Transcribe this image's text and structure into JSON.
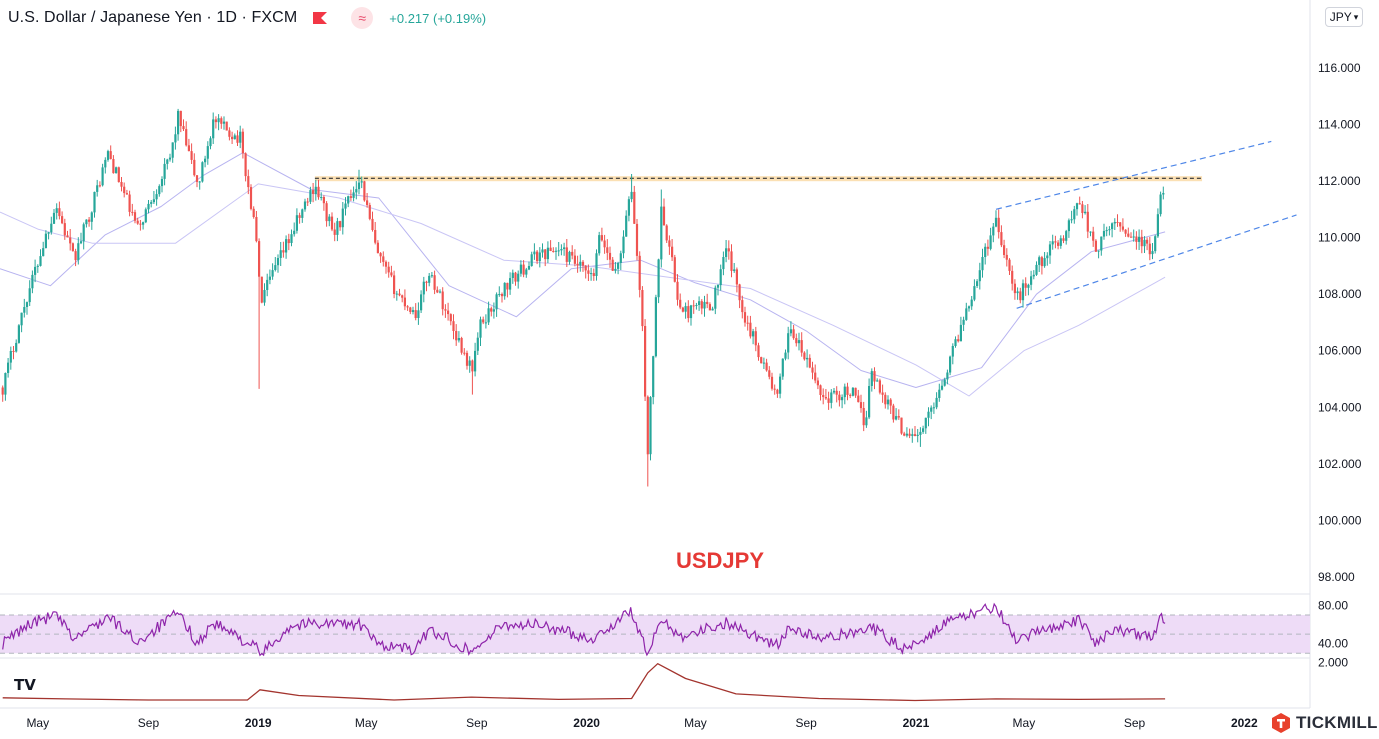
{
  "header": {
    "title": "U.S. Dollar / Japanese Yen · 1D · FXCM",
    "change": "+0.217 (+0.19%)",
    "flag_icon": "flag-icon",
    "indicator_icon": "wave-icon"
  },
  "currency_selector": {
    "label": "JPY",
    "icon": "chevron-down-icon"
  },
  "brand": {
    "name": "TICKMILL",
    "logo_icon": "tickmill-logo-icon"
  },
  "tv_logo": "TV",
  "colors": {
    "up": "#26a69a",
    "down": "#ef5350",
    "ma_fast": "#b7b3f0",
    "ma_slow": "#c9c5f5",
    "resistance": "#131722",
    "resistance_band": "#fbe0b4",
    "channel": "#4f87e8",
    "watermark": "#e53935",
    "rsi_line": "#8e24aa",
    "rsi_band": "#eedcf7",
    "volatility_line": "#a3342e",
    "axis_text": "#131722"
  },
  "chart_data": [
    {
      "type": "candlestick",
      "watermark": "USDJPY",
      "y_ticks": [
        "98.000",
        "100.000",
        "102.000",
        "104.000",
        "106.000",
        "108.000",
        "110.000",
        "112.000",
        "114.000",
        "116.000"
      ],
      "ylim": [
        97.4,
        118.4
      ],
      "x_ticks": [
        "May",
        "Sep",
        "2019",
        "May",
        "Sep",
        "2020",
        "May",
        "Sep",
        "2021",
        "May",
        "Sep",
        "2022"
      ],
      "x_tick_dates": [
        "2018-05-01",
        "2018-09-01",
        "2019-01-01",
        "2019-05-01",
        "2019-09-01",
        "2020-01-01",
        "2020-05-01",
        "2020-09-01",
        "2021-01-01",
        "2021-05-01",
        "2021-09-01",
        "2022-01-01"
      ],
      "xlim": [
        "2018-03-20",
        "2022-03-15"
      ],
      "price_path": [
        [
          "2018-03-23",
          104.7
        ],
        [
          "2018-04-15",
          107.5
        ],
        [
          "2018-05-21",
          111.2
        ],
        [
          "2018-06-10",
          109.2
        ],
        [
          "2018-06-28",
          110.9
        ],
        [
          "2018-07-18",
          113.0
        ],
        [
          "2018-08-20",
          110.3
        ],
        [
          "2018-09-25",
          112.8
        ],
        [
          "2018-10-04",
          114.3
        ],
        [
          "2018-10-26",
          111.8
        ],
        [
          "2018-11-12",
          114.1
        ],
        [
          "2018-12-12",
          113.5
        ],
        [
          "2018-12-31",
          109.8
        ],
        [
          "2019-01-03",
          107.7
        ],
        [
          "2019-01-10",
          108.2
        ],
        [
          "2019-02-05",
          110.0
        ],
        [
          "2019-03-05",
          111.9
        ],
        [
          "2019-03-26",
          110.1
        ],
        [
          "2019-04-24",
          112.2
        ],
        [
          "2019-05-13",
          109.4
        ],
        [
          "2019-06-05",
          108.0
        ],
        [
          "2019-06-25",
          107.3
        ],
        [
          "2019-07-10",
          108.8
        ],
        [
          "2019-08-26",
          105.3
        ],
        [
          "2019-09-05",
          106.9
        ],
        [
          "2019-10-01",
          108.2
        ],
        [
          "2019-11-07",
          109.4
        ],
        [
          "2019-12-02",
          109.6
        ],
        [
          "2020-01-08",
          108.5
        ],
        [
          "2020-01-16",
          110.1
        ],
        [
          "2020-02-03",
          108.7
        ],
        [
          "2020-02-20",
          111.7
        ],
        [
          "2020-03-02",
          107.4
        ],
        [
          "2020-03-09",
          102.4
        ],
        [
          "2020-03-24",
          111.2
        ],
        [
          "2020-04-15",
          107.3
        ],
        [
          "2020-05-20",
          107.7
        ],
        [
          "2020-06-05",
          109.6
        ],
        [
          "2020-06-25",
          107.2
        ],
        [
          "2020-07-31",
          104.3
        ],
        [
          "2020-08-13",
          106.9
        ],
        [
          "2020-09-21",
          104.3
        ],
        [
          "2020-10-21",
          104.6
        ],
        [
          "2020-11-06",
          103.4
        ],
        [
          "2020-11-11",
          105.3
        ],
        [
          "2020-12-17",
          103.2
        ],
        [
          "2021-01-06",
          103.0
        ],
        [
          "2021-02-05",
          105.4
        ],
        [
          "2021-03-31",
          110.7
        ],
        [
          "2021-04-23",
          107.8
        ],
        [
          "2021-05-20",
          109.2
        ],
        [
          "2021-06-15",
          110.1
        ],
        [
          "2021-07-02",
          111.4
        ],
        [
          "2021-07-19",
          109.5
        ],
        [
          "2021-08-10",
          110.6
        ],
        [
          "2021-09-09",
          109.8
        ],
        [
          "2021-09-21",
          109.4
        ],
        [
          "2021-09-30",
          111.3
        ],
        [
          "2021-10-05",
          111.5
        ]
      ],
      "wicks": [
        {
          "date": "2018-10-04",
          "high": 114.55
        },
        {
          "date": "2019-01-03",
          "low": 104.65
        },
        {
          "date": "2019-04-24",
          "high": 112.4
        },
        {
          "date": "2019-08-26",
          "low": 104.45
        },
        {
          "date": "2020-02-20",
          "high": 112.25
        },
        {
          "date": "2020-03-09",
          "low": 101.2
        },
        {
          "date": "2020-03-24",
          "high": 111.7
        },
        {
          "date": "2021-01-06",
          "low": 102.6
        },
        {
          "date": "2021-10-05",
          "high": 112.05
        }
      ],
      "ma_fast": [
        [
          "2018-03-20",
          108.9
        ],
        [
          "2018-05-15",
          108.3
        ],
        [
          "2018-07-15",
          110.1
        ],
        [
          "2018-09-15",
          111.1
        ],
        [
          "2018-11-01",
          112.2
        ],
        [
          "2018-12-15",
          113.0
        ],
        [
          "2019-03-01",
          111.7
        ],
        [
          "2019-05-15",
          111.4
        ],
        [
          "2019-08-01",
          108.3
        ],
        [
          "2019-10-15",
          107.2
        ],
        [
          "2019-12-15",
          108.9
        ],
        [
          "2020-03-01",
          109.2
        ],
        [
          "2020-05-01",
          108.4
        ],
        [
          "2020-07-01",
          107.8
        ],
        [
          "2020-09-01",
          106.7
        ],
        [
          "2020-11-01",
          105.3
        ],
        [
          "2021-01-01",
          104.7
        ],
        [
          "2021-03-15",
          105.4
        ],
        [
          "2021-05-15",
          108.0
        ],
        [
          "2021-07-15",
          109.5
        ],
        [
          "2021-10-05",
          110.2
        ]
      ],
      "ma_slow": [
        [
          "2018-03-20",
          110.9
        ],
        [
          "2018-05-01",
          110.3
        ],
        [
          "2018-07-01",
          109.8
        ],
        [
          "2018-10-01",
          109.8
        ],
        [
          "2019-01-01",
          111.9
        ],
        [
          "2019-04-01",
          111.4
        ],
        [
          "2019-07-01",
          110.5
        ],
        [
          "2019-10-01",
          109.2
        ],
        [
          "2020-01-01",
          109.0
        ],
        [
          "2020-04-01",
          108.6
        ],
        [
          "2020-07-01",
          108.2
        ],
        [
          "2020-10-01",
          106.9
        ],
        [
          "2021-01-01",
          105.5
        ],
        [
          "2021-03-01",
          104.4
        ],
        [
          "2021-05-01",
          106.0
        ],
        [
          "2021-07-01",
          106.9
        ],
        [
          "2021-10-05",
          108.6
        ]
      ],
      "resistance_line": {
        "y": 112.1,
        "from": "2019-03-05",
        "to": "2021-11-15"
      },
      "channel_upper": {
        "from": [
          "2021-03-31",
          111.0
        ],
        "to": [
          "2022-01-31",
          113.4
        ]
      },
      "channel_lower": {
        "from": [
          "2021-04-23",
          107.5
        ],
        "to": [
          "2022-02-28",
          110.8
        ]
      }
    },
    {
      "type": "line",
      "y_ticks": [
        "40.00",
        "80.00"
      ],
      "ylim": [
        25,
        92
      ],
      "band": [
        30,
        70
      ],
      "midline": 50,
      "values": [
        [
          "2018-03-23",
          40
        ],
        [
          "2018-04-20",
          60
        ],
        [
          "2018-05-21",
          70
        ],
        [
          "2018-06-10",
          45
        ],
        [
          "2018-07-18",
          68
        ],
        [
          "2018-08-20",
          42
        ],
        [
          "2018-10-04",
          72
        ],
        [
          "2018-10-26",
          40
        ],
        [
          "2018-11-12",
          62
        ],
        [
          "2018-12-31",
          35
        ],
        [
          "2019-01-03",
          28
        ],
        [
          "2019-02-05",
          58
        ],
        [
          "2019-03-05",
          62
        ],
        [
          "2019-04-24",
          60
        ],
        [
          "2019-05-13",
          40
        ],
        [
          "2019-06-25",
          33
        ],
        [
          "2019-07-10",
          55
        ],
        [
          "2019-08-26",
          32
        ],
        [
          "2019-10-01",
          60
        ],
        [
          "2019-11-07",
          60
        ],
        [
          "2020-01-08",
          45
        ],
        [
          "2020-02-20",
          74
        ],
        [
          "2020-03-09",
          28
        ],
        [
          "2020-03-24",
          66
        ],
        [
          "2020-04-15",
          48
        ],
        [
          "2020-06-05",
          62
        ],
        [
          "2020-07-31",
          38
        ],
        [
          "2020-08-13",
          56
        ],
        [
          "2020-09-21",
          44
        ],
        [
          "2020-11-11",
          58
        ],
        [
          "2020-12-17",
          35
        ],
        [
          "2021-01-06",
          44
        ],
        [
          "2021-02-05",
          62
        ],
        [
          "2021-03-31",
          80
        ],
        [
          "2021-04-23",
          40
        ],
        [
          "2021-05-20",
          55
        ],
        [
          "2021-07-02",
          64
        ],
        [
          "2021-07-19",
          42
        ],
        [
          "2021-08-10",
          55
        ],
        [
          "2021-09-21",
          45
        ],
        [
          "2021-09-30",
          68
        ],
        [
          "2021-10-05",
          64
        ]
      ]
    },
    {
      "type": "line",
      "y_ticks": [
        "2.000"
      ],
      "ylim": [
        0,
        2.2
      ],
      "values": [
        [
          "2018-03-23",
          0.45
        ],
        [
          "2018-06-01",
          0.4
        ],
        [
          "2018-09-01",
          0.35
        ],
        [
          "2018-12-20",
          0.35
        ],
        [
          "2019-01-03",
          0.8
        ],
        [
          "2019-02-15",
          0.55
        ],
        [
          "2019-06-01",
          0.35
        ],
        [
          "2019-08-26",
          0.48
        ],
        [
          "2019-12-01",
          0.38
        ],
        [
          "2020-02-20",
          0.42
        ],
        [
          "2020-03-09",
          1.55
        ],
        [
          "2020-03-20",
          1.95
        ],
        [
          "2020-04-20",
          1.3
        ],
        [
          "2020-06-15",
          0.62
        ],
        [
          "2020-09-15",
          0.42
        ],
        [
          "2020-12-31",
          0.33
        ],
        [
          "2021-03-31",
          0.4
        ],
        [
          "2021-07-01",
          0.38
        ],
        [
          "2021-10-05",
          0.4
        ]
      ]
    }
  ]
}
